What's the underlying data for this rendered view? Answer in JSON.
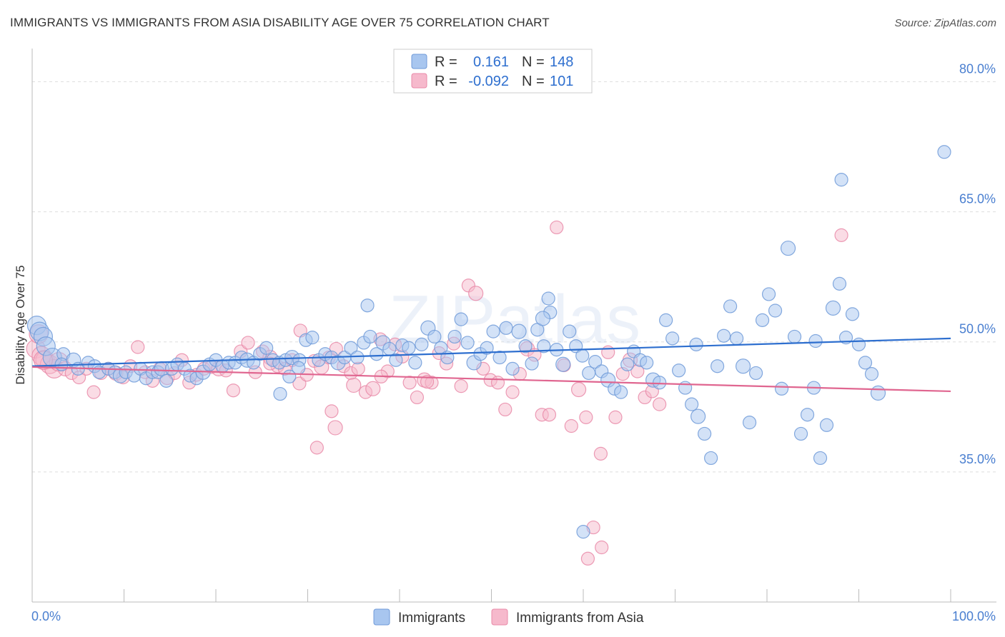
{
  "title": "IMMIGRANTS VS IMMIGRANTS FROM ASIA DISABILITY AGE OVER 75 CORRELATION CHART",
  "source": "Source: ZipAtlas.com",
  "watermark": "ZIPatlas",
  "colors": {
    "blue_fill": "#a8c6ef",
    "blue_stroke": "#6f9ad8",
    "blue_line": "#2e6fcf",
    "pink_fill": "#f6b9cc",
    "pink_stroke": "#e98aa8",
    "pink_line": "#e06690",
    "tick_text": "#4a7fd0",
    "grid": "#dddddd"
  },
  "legend": {
    "rows": [
      {
        "r_label": "R =",
        "r_value": "0.161",
        "n_label": "N =",
        "n_value": "148"
      },
      {
        "r_label": "R =",
        "r_value": "-0.092",
        "n_label": "N =",
        "n_value": "101"
      }
    ]
  },
  "chart_data": {
    "type": "scatter",
    "title": "IMMIGRANTS VS IMMIGRANTS FROM ASIA DISABILITY AGE OVER 75 CORRELATION CHART",
    "xlabel": "",
    "ylabel": "Disability Age Over 75",
    "xlim": [
      0,
      100
    ],
    "ylim": [
      20,
      83
    ],
    "x_tick_labels": [
      "0.0%",
      "100.0%"
    ],
    "y_ticks": [
      35,
      50,
      65,
      80
    ],
    "y_tick_labels": [
      "35.0%",
      "50.0%",
      "65.0%",
      "80.0%"
    ],
    "grid": true,
    "legend_position": "top-center",
    "series": [
      {
        "name": "Immigrants",
        "r": 0.161,
        "n": 148,
        "trend": {
          "x": [
            0,
            100
          ],
          "y": [
            47.2,
            50.4
          ]
        },
        "points": [
          [
            0.5,
            51.9
          ],
          [
            0.8,
            51.2
          ],
          [
            1.2,
            50.6
          ],
          [
            1.5,
            49.5
          ],
          [
            2.2,
            48.2
          ],
          [
            3.4,
            48.6
          ],
          [
            3.2,
            47.4
          ],
          [
            4.5,
            47.9
          ],
          [
            5,
            46.9
          ],
          [
            6.1,
            47.6
          ],
          [
            6.8,
            47.2
          ],
          [
            7.3,
            46.5
          ],
          [
            8.3,
            46.9
          ],
          [
            9,
            46.5
          ],
          [
            9.6,
            46.1
          ],
          [
            10.2,
            46.5
          ],
          [
            11.1,
            46.1
          ],
          [
            11.8,
            46.9
          ],
          [
            12.4,
            45.8
          ],
          [
            13.1,
            46.5
          ],
          [
            13.7,
            46.5
          ],
          [
            14.1,
            46.9
          ],
          [
            14.6,
            45.5
          ],
          [
            15.2,
            46.9
          ],
          [
            15.8,
            47.4
          ],
          [
            16.6,
            46.9
          ],
          [
            17.2,
            46.1
          ],
          [
            17.9,
            45.8
          ],
          [
            18.6,
            46.5
          ],
          [
            19.3,
            47.4
          ],
          [
            20,
            47.9
          ],
          [
            20.7,
            47.2
          ],
          [
            21.4,
            47.6
          ],
          [
            22.1,
            47.6
          ],
          [
            22.8,
            48.2
          ],
          [
            23.4,
            47.9
          ],
          [
            24.1,
            47.6
          ],
          [
            24.8,
            48.6
          ],
          [
            25.5,
            49.3
          ],
          [
            26.2,
            47.9
          ],
          [
            26.9,
            47.6
          ],
          [
            27.6,
            47.9
          ],
          [
            28.3,
            48.2
          ],
          [
            29.1,
            47.9
          ],
          [
            29.8,
            50.2
          ],
          [
            30.5,
            50.5
          ],
          [
            31.2,
            47.9
          ],
          [
            31.9,
            48.6
          ],
          [
            32.6,
            48.2
          ],
          [
            33.3,
            47.6
          ],
          [
            34,
            48.2
          ],
          [
            34.7,
            49.3
          ],
          [
            35.4,
            48.2
          ],
          [
            36.1,
            49.9
          ],
          [
            36.8,
            50.6
          ],
          [
            37.5,
            48.6
          ],
          [
            38.2,
            49.9
          ],
          [
            38.9,
            49.2
          ],
          [
            39.6,
            47.9
          ],
          [
            40.3,
            49.6
          ],
          [
            41,
            49.3
          ],
          [
            41.7,
            47.6
          ],
          [
            42.4,
            49.7
          ],
          [
            43.1,
            51.6
          ],
          [
            43.8,
            50.6
          ],
          [
            44.5,
            49.3
          ],
          [
            45.2,
            48.2
          ],
          [
            46,
            50.6
          ],
          [
            46.7,
            52.6
          ],
          [
            47.4,
            49.9
          ],
          [
            48.1,
            47.6
          ],
          [
            48.8,
            48.6
          ],
          [
            49.5,
            49.3
          ],
          [
            50.2,
            51.2
          ],
          [
            50.9,
            48.2
          ],
          [
            51.6,
            51.6
          ],
          [
            52.3,
            46.9
          ],
          [
            53,
            51.2
          ],
          [
            53.7,
            49.5
          ],
          [
            54.4,
            47.5
          ],
          [
            55,
            51.4
          ],
          [
            55.7,
            49.5
          ],
          [
            56.4,
            53.4
          ],
          [
            57.1,
            49.1
          ],
          [
            57.8,
            47.4
          ],
          [
            58.5,
            51.2
          ],
          [
            59.2,
            49.5
          ],
          [
            59.9,
            48.4
          ],
          [
            60.6,
            46.4
          ],
          [
            61.3,
            47.7
          ],
          [
            62,
            46.6
          ],
          [
            62.7,
            45.6
          ],
          [
            63.4,
            44.6
          ],
          [
            64.1,
            44.2
          ],
          [
            64.8,
            47.4
          ],
          [
            65.5,
            48.9
          ],
          [
            66.2,
            47.9
          ],
          [
            66.9,
            47.6
          ],
          [
            67.6,
            45.6
          ],
          [
            68.3,
            45.3
          ],
          [
            69,
            52.5
          ],
          [
            69.7,
            50.4
          ],
          [
            70.4,
            46.7
          ],
          [
            71.1,
            44.7
          ],
          [
            71.8,
            42.8
          ],
          [
            72.5,
            41.4
          ],
          [
            73.2,
            39.4
          ],
          [
            73.9,
            36.6
          ],
          [
            74.6,
            47.2
          ],
          [
            75.3,
            50.7
          ],
          [
            76,
            54.1
          ],
          [
            76.7,
            50.4
          ],
          [
            77.4,
            47.2
          ],
          [
            78.1,
            40.7
          ],
          [
            78.8,
            46.4
          ],
          [
            79.5,
            52.5
          ],
          [
            80.2,
            55.5
          ],
          [
            80.9,
            53.6
          ],
          [
            81.6,
            44.6
          ],
          [
            82.3,
            60.8
          ],
          [
            83,
            50.6
          ],
          [
            83.7,
            39.4
          ],
          [
            84.4,
            41.6
          ],
          [
            85.1,
            44.7
          ],
          [
            85.8,
            36.6
          ],
          [
            86.5,
            40.4
          ],
          [
            87.2,
            53.9
          ],
          [
            87.9,
            56.7
          ],
          [
            88.6,
            50.5
          ],
          [
            89.3,
            53.2
          ],
          [
            90,
            49.7
          ],
          [
            90.7,
            47.6
          ],
          [
            91.4,
            46.3
          ],
          [
            92.1,
            44.1
          ],
          [
            60,
            28.1
          ],
          [
            36.5,
            54.2
          ],
          [
            28,
            46
          ],
          [
            29,
            47
          ],
          [
            27,
            44
          ],
          [
            56.2,
            55
          ],
          [
            55.6,
            52.7
          ],
          [
            88.1,
            68.7
          ],
          [
            99.3,
            71.9
          ],
          [
            72.3,
            49.7
          ],
          [
            85.3,
            50.1
          ]
        ]
      },
      {
        "name": "Immigrants from Asia",
        "r": -0.092,
        "n": 101,
        "trend": {
          "x": [
            0,
            100
          ],
          "y": [
            47.1,
            44.3
          ]
        },
        "points": [
          [
            0.4,
            49.2
          ],
          [
            0.7,
            50.9
          ],
          [
            1,
            48.4
          ],
          [
            1.4,
            47.9
          ],
          [
            1.9,
            47.4
          ],
          [
            2.4,
            46.9
          ],
          [
            2.9,
            47.7
          ],
          [
            3.6,
            46.9
          ],
          [
            4.3,
            46.4
          ],
          [
            5.1,
            45.9
          ],
          [
            5.9,
            46.9
          ],
          [
            6.7,
            44.2
          ],
          [
            7.5,
            46.4
          ],
          [
            8.3,
            46.9
          ],
          [
            9.1,
            46.4
          ],
          [
            9.9,
            45.9
          ],
          [
            10.7,
            47.2
          ],
          [
            11.5,
            49.4
          ],
          [
            12.3,
            46.5
          ],
          [
            13.1,
            45.5
          ],
          [
            13.9,
            46.9
          ],
          [
            14.7,
            45.9
          ],
          [
            15.5,
            46.4
          ],
          [
            16.3,
            47.9
          ],
          [
            17.1,
            45.3
          ],
          [
            17.9,
            46.2
          ],
          [
            18.7,
            46.9
          ],
          [
            19.5,
            47.1
          ],
          [
            20.3,
            46.9
          ],
          [
            21.1,
            46.7
          ],
          [
            21.9,
            44.4
          ],
          [
            22.7,
            48.9
          ],
          [
            23.5,
            49.9
          ],
          [
            24.3,
            46.5
          ],
          [
            25.1,
            48.9
          ],
          [
            25.9,
            48.2
          ],
          [
            26.7,
            47.2
          ],
          [
            27.5,
            46.9
          ],
          [
            28.3,
            47.9
          ],
          [
            29.1,
            45.2
          ],
          [
            29.9,
            46.2
          ],
          [
            30.7,
            47.8
          ],
          [
            31.5,
            47.1
          ],
          [
            32.3,
            48.2
          ],
          [
            33.1,
            49.2
          ],
          [
            33.9,
            47.2
          ],
          [
            34.7,
            46.4
          ],
          [
            35.5,
            46.9
          ],
          [
            36.3,
            44.2
          ],
          [
            37.1,
            44.6
          ],
          [
            37.9,
            50.3
          ],
          [
            38.7,
            46.6
          ],
          [
            39.5,
            49.7
          ],
          [
            40.3,
            48.3
          ],
          [
            41.1,
            45.3
          ],
          [
            41.9,
            43.6
          ],
          [
            42.7,
            45.6
          ],
          [
            43.5,
            45.3
          ],
          [
            44.3,
            48.7
          ],
          [
            45.1,
            47.5
          ],
          [
            45.9,
            49.8
          ],
          [
            46.7,
            44.9
          ],
          [
            47.5,
            56.5
          ],
          [
            48.3,
            55.6
          ],
          [
            49.1,
            46.9
          ],
          [
            49.9,
            45.6
          ],
          [
            50.7,
            45.3
          ],
          [
            51.5,
            42.2
          ],
          [
            52.3,
            44.2
          ],
          [
            53.1,
            46.3
          ],
          [
            53.9,
            49.2
          ],
          [
            54.7,
            48.5
          ],
          [
            55.5,
            41.6
          ],
          [
            56.3,
            41.6
          ],
          [
            57.1,
            63.2
          ],
          [
            57.9,
            47.3
          ],
          [
            58.7,
            40.3
          ],
          [
            59.5,
            44.5
          ],
          [
            60.3,
            41.3
          ],
          [
            61.1,
            28.6
          ],
          [
            61.9,
            37.1
          ],
          [
            62.7,
            48.8
          ],
          [
            63.5,
            41.3
          ],
          [
            64.3,
            46.3
          ],
          [
            65.1,
            47.9
          ],
          [
            65.9,
            46.6
          ],
          [
            66.7,
            43.6
          ],
          [
            67.5,
            44.3
          ],
          [
            68.3,
            42.8
          ],
          [
            29.2,
            51.3
          ],
          [
            25.9,
            47.5
          ],
          [
            33,
            40.1
          ],
          [
            32.6,
            42
          ],
          [
            31,
            37.8
          ],
          [
            62,
            26.3
          ],
          [
            60.5,
            25
          ],
          [
            43,
            45.4
          ],
          [
            38,
            46
          ],
          [
            35,
            45
          ],
          [
            88.1,
            62.3
          ],
          [
            1.2,
            47.9
          ]
        ]
      }
    ]
  },
  "bottom_legend": {
    "items": [
      {
        "label": "Immigrants"
      },
      {
        "label": "Immigrants from Asia"
      }
    ]
  }
}
